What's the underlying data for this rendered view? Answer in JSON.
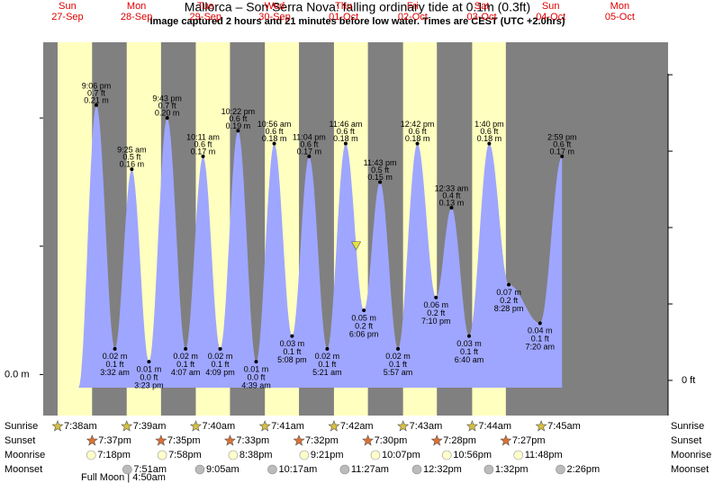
{
  "chart_data": {
    "type": "tide",
    "title": "Mallorca – Son Serra Nova: falling  ordinary tide at 0.1m (0.3ft)",
    "subtitle": "Image captured 2 hours and 21 minutes before low water. Times are CEST (UTC +2.0hrs)",
    "current_level_m": 0.1,
    "ylim": [
      -0.032,
      0.259
    ],
    "yticks": [
      {
        "value": 0,
        "label": "0.0 m"
      }
    ],
    "yminor": [
      0.1,
      0.2
    ],
    "y2lim": [
      -0.092,
      0.885
    ],
    "y2ticks": [
      {
        "value": 0,
        "label": "0 ft"
      }
    ],
    "y2minor": [
      0.2,
      0.4,
      0.6,
      0.8
    ],
    "colors": {
      "night": "#808080",
      "day": "#ffffc0",
      "tide": "#9fa6ff",
      "header": "#dd0000"
    },
    "row_labels": {
      "sunrise": "Sunrise",
      "sunset": "Sunset",
      "moonrise": "Moonrise",
      "moonset": "Moonset"
    },
    "moon_phase": "Full Moon | 4:50am",
    "days": [
      {
        "dow": "Sun",
        "date": "27-Sep",
        "sunrise": "7:38am",
        "sunset": "7:37pm",
        "moonrise": "7:18pm",
        "extremes": [
          {
            "type": "high",
            "time": "9:06 pm",
            "ft": {
              "value": 0.7,
              "label": "0.7 ft"
            },
            "m": {
              "value": 0.21,
              "label": "0.21 m"
            }
          }
        ]
      },
      {
        "dow": "Mon",
        "date": "28-Sep",
        "sunrise": "7:39am",
        "sunset": "7:35pm",
        "moonrise": "7:58pm",
        "moonset": "7:51am",
        "extremes": [
          {
            "type": "low",
            "time": "3:32 am",
            "ft": {
              "value": 0.1,
              "label": "0.1 ft"
            },
            "m": {
              "value": 0.02,
              "label": "0.02 m"
            }
          },
          {
            "type": "high",
            "time": "9:25 am",
            "ft": {
              "value": 0.5,
              "label": "0.5 ft"
            },
            "m": {
              "value": 0.16,
              "label": "0.16 m"
            }
          },
          {
            "type": "low",
            "time": "3:23 pm",
            "ft": {
              "value": 0.0,
              "label": "0.0 ft"
            },
            "m": {
              "value": 0.01,
              "label": "0.01 m"
            }
          },
          {
            "type": "high",
            "time": "9:43 pm",
            "ft": {
              "value": 0.7,
              "label": "0.7 ft"
            },
            "m": {
              "value": 0.2,
              "label": "0.20 m"
            }
          }
        ]
      },
      {
        "dow": "Tue",
        "date": "29-Sep",
        "sunrise": "7:40am",
        "sunset": "7:33pm",
        "moonrise": "8:38pm",
        "moonset": "9:05am",
        "extremes": [
          {
            "type": "low",
            "time": "4:07 am",
            "ft": {
              "value": 0.1,
              "label": "0.1 ft"
            },
            "m": {
              "value": 0.02,
              "label": "0.02 m"
            }
          },
          {
            "type": "high",
            "time": "10:11 am",
            "ft": {
              "value": 0.6,
              "label": "0.6 ft"
            },
            "m": {
              "value": 0.17,
              "label": "0.17 m"
            }
          },
          {
            "type": "low",
            "time": "4:09 pm",
            "ft": {
              "value": 0.1,
              "label": "0.1 ft"
            },
            "m": {
              "value": 0.02,
              "label": "0.02 m"
            }
          },
          {
            "type": "high",
            "time": "10:22 pm",
            "ft": {
              "value": 0.6,
              "label": "0.6 ft"
            },
            "m": {
              "value": 0.19,
              "label": "0.19 m"
            }
          }
        ]
      },
      {
        "dow": "Wed",
        "date": "30-Sep",
        "sunrise": "7:41am",
        "sunset": "7:32pm",
        "moonrise": "9:21pm",
        "moonset": "10:17am",
        "extremes": [
          {
            "type": "low",
            "time": "4:39 am",
            "ft": {
              "value": 0.0,
              "label": "0.0 ft"
            },
            "m": {
              "value": 0.01,
              "label": "0.01 m"
            }
          },
          {
            "type": "high",
            "time": "10:56 am",
            "ft": {
              "value": 0.6,
              "label": "0.6 ft"
            },
            "m": {
              "value": 0.18,
              "label": "0.18 m"
            }
          },
          {
            "type": "low",
            "time": "5:08 pm",
            "ft": {
              "value": 0.1,
              "label": "0.1 ft"
            },
            "m": {
              "value": 0.03,
              "label": "0.03 m"
            }
          },
          {
            "type": "high",
            "time": "11:04 pm",
            "ft": {
              "value": 0.6,
              "label": "0.6 ft"
            },
            "m": {
              "value": 0.17,
              "label": "0.17 m"
            }
          }
        ]
      },
      {
        "dow": "Thu",
        "date": "01-Oct",
        "sunrise": "7:42am",
        "sunset": "7:30pm",
        "moonrise": "10:07pm",
        "moonset": "11:27am",
        "extremes": [
          {
            "type": "low",
            "time": "5:21 am",
            "ft": {
              "value": 0.1,
              "label": "0.1 ft"
            },
            "m": {
              "value": 0.02,
              "label": "0.02 m"
            }
          },
          {
            "type": "high",
            "time": "11:46 am",
            "ft": {
              "value": 0.6,
              "label": "0.6 ft"
            },
            "m": {
              "value": 0.18,
              "label": "0.18 m"
            }
          },
          {
            "type": "low",
            "time": "6:06 pm",
            "ft": {
              "value": 0.2,
              "label": "0.2 ft"
            },
            "m": {
              "value": 0.05,
              "label": "0.05 m"
            }
          },
          {
            "type": "high",
            "time": "11:43 pm",
            "ft": {
              "value": 0.5,
              "label": "0.5 ft"
            },
            "m": {
              "value": 0.15,
              "label": "0.15 m"
            }
          }
        ]
      },
      {
        "dow": "Fri",
        "date": "02-Oct",
        "sunrise": "7:43am",
        "sunset": "7:28pm",
        "moonrise": "10:56pm",
        "moonset": "12:32pm",
        "extremes": [
          {
            "type": "low",
            "time": "5:57 am",
            "ft": {
              "value": 0.1,
              "label": "0.1 ft"
            },
            "m": {
              "value": 0.02,
              "label": "0.02 m"
            }
          },
          {
            "type": "high",
            "time": "12:42 pm",
            "ft": {
              "value": 0.6,
              "label": "0.6 ft"
            },
            "m": {
              "value": 0.18,
              "label": "0.18 m"
            }
          },
          {
            "type": "low",
            "time": "7:10 pm",
            "ft": {
              "value": 0.2,
              "label": "0.2 ft"
            },
            "m": {
              "value": 0.06,
              "label": "0.06 m"
            }
          }
        ]
      },
      {
        "dow": "Sat",
        "date": "03-Oct",
        "sunrise": "7:44am",
        "sunset": "7:27pm",
        "moonrise": "11:48pm",
        "moonset": "1:32pm",
        "extremes": [
          {
            "type": "high",
            "time": "12:33 am",
            "ft": {
              "value": 0.4,
              "label": "0.4 ft"
            },
            "m": {
              "value": 0.13,
              "label": "0.13 m"
            }
          },
          {
            "type": "low",
            "time": "6:40 am",
            "ft": {
              "value": 0.1,
              "label": "0.1 ft"
            },
            "m": {
              "value": 0.03,
              "label": "0.03 m"
            }
          },
          {
            "type": "high",
            "time": "1:40 pm",
            "ft": {
              "value": 0.6,
              "label": "0.6 ft"
            },
            "m": {
              "value": 0.18,
              "label": "0.18 m"
            }
          },
          {
            "type": "low",
            "time": "8:28 pm",
            "ft": {
              "value": 0.2,
              "label": "0.2 ft"
            },
            "m": {
              "value": 0.07,
              "label": "0.07 m"
            }
          }
        ]
      },
      {
        "dow": "Sun",
        "date": "04-Oct",
        "sunrise": "7:45am",
        "moonset": "2:26pm",
        "extremes": [
          {
            "type": "low",
            "time": "7:20 am",
            "ft": {
              "value": 0.1,
              "label": "0.1 ft"
            },
            "m": {
              "value": 0.04,
              "label": "0.04 m"
            }
          },
          {
            "type": "high",
            "time": "2:59 pm",
            "ft": {
              "value": 0.6,
              "label": "0.6 ft"
            },
            "m": {
              "value": 0.17,
              "label": "0.17 m"
            }
          }
        ]
      },
      {
        "dow": "Mon",
        "date": "05-Oct",
        "extremes": []
      }
    ]
  }
}
